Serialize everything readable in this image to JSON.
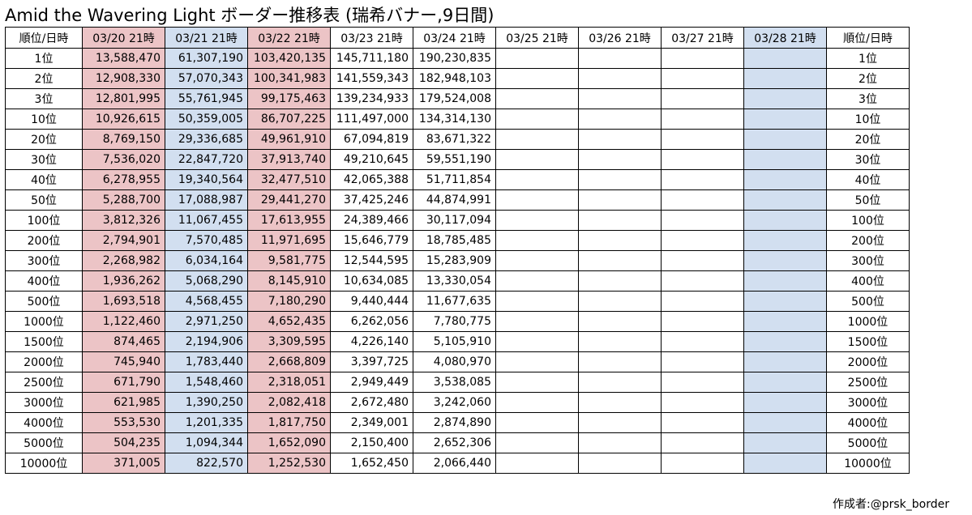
{
  "title": "Amid the Wavering Light ボーダー推移表 (瑞希バナー,9日間)",
  "credit": "作成者:@prsk_border",
  "colors": {
    "pink": "#ecc4c6",
    "blue": "#d2dff0",
    "grid": "#000000"
  },
  "table": {
    "corner_left": "順位/日時",
    "corner_right": "順位/日時",
    "columns": [
      {
        "label": "03/20 21時",
        "tint": "pink"
      },
      {
        "label": "03/21 21時",
        "tint": "blue"
      },
      {
        "label": "03/22 21時",
        "tint": "pink"
      },
      {
        "label": "03/23 21時",
        "tint": ""
      },
      {
        "label": "03/24 21時",
        "tint": ""
      },
      {
        "label": "03/25 21時",
        "tint": ""
      },
      {
        "label": "03/26 21時",
        "tint": ""
      },
      {
        "label": "03/27 21時",
        "tint": ""
      },
      {
        "label": "03/28 21時",
        "tint": "blue"
      }
    ],
    "rows": [
      {
        "rank": "1位",
        "values": [
          "13,588,470",
          "61,307,190",
          "103,420,135",
          "145,711,180",
          "190,230,835",
          "",
          "",
          "",
          ""
        ]
      },
      {
        "rank": "2位",
        "values": [
          "12,908,330",
          "57,070,343",
          "100,341,983",
          "141,559,343",
          "182,948,103",
          "",
          "",
          "",
          ""
        ]
      },
      {
        "rank": "3位",
        "values": [
          "12,801,995",
          "55,761,945",
          "99,175,463",
          "139,234,933",
          "179,524,008",
          "",
          "",
          "",
          ""
        ]
      },
      {
        "rank": "10位",
        "values": [
          "10,926,615",
          "50,359,005",
          "86,707,225",
          "111,497,000",
          "134,314,130",
          "",
          "",
          "",
          ""
        ]
      },
      {
        "rank": "20位",
        "values": [
          "8,769,150",
          "29,336,685",
          "49,961,910",
          "67,094,819",
          "83,671,322",
          "",
          "",
          "",
          ""
        ]
      },
      {
        "rank": "30位",
        "values": [
          "7,536,020",
          "22,847,720",
          "37,913,740",
          "49,210,645",
          "59,551,190",
          "",
          "",
          "",
          ""
        ]
      },
      {
        "rank": "40位",
        "values": [
          "6,278,955",
          "19,340,564",
          "32,477,510",
          "42,065,388",
          "51,711,854",
          "",
          "",
          "",
          ""
        ]
      },
      {
        "rank": "50位",
        "values": [
          "5,288,700",
          "17,088,987",
          "29,441,270",
          "37,425,246",
          "44,874,991",
          "",
          "",
          "",
          ""
        ]
      },
      {
        "rank": "100位",
        "values": [
          "3,812,326",
          "11,067,455",
          "17,613,955",
          "24,389,466",
          "30,117,094",
          "",
          "",
          "",
          ""
        ]
      },
      {
        "rank": "200位",
        "values": [
          "2,794,901",
          "7,570,485",
          "11,971,695",
          "15,646,779",
          "18,785,485",
          "",
          "",
          "",
          ""
        ]
      },
      {
        "rank": "300位",
        "values": [
          "2,268,982",
          "6,034,164",
          "9,581,775",
          "12,544,595",
          "15,283,909",
          "",
          "",
          "",
          ""
        ]
      },
      {
        "rank": "400位",
        "values": [
          "1,936,262",
          "5,068,290",
          "8,145,910",
          "10,634,085",
          "13,330,054",
          "",
          "",
          "",
          ""
        ]
      },
      {
        "rank": "500位",
        "values": [
          "1,693,518",
          "4,568,455",
          "7,180,290",
          "9,440,444",
          "11,677,635",
          "",
          "",
          "",
          ""
        ]
      },
      {
        "rank": "1000位",
        "values": [
          "1,122,460",
          "2,971,250",
          "4,652,435",
          "6,262,056",
          "7,780,775",
          "",
          "",
          "",
          ""
        ]
      },
      {
        "rank": "1500位",
        "values": [
          "874,465",
          "2,194,906",
          "3,309,595",
          "4,226,140",
          "5,105,910",
          "",
          "",
          "",
          ""
        ]
      },
      {
        "rank": "2000位",
        "values": [
          "745,940",
          "1,783,440",
          "2,668,809",
          "3,397,725",
          "4,080,970",
          "",
          "",
          "",
          ""
        ]
      },
      {
        "rank": "2500位",
        "values": [
          "671,790",
          "1,548,460",
          "2,318,051",
          "2,949,449",
          "3,538,085",
          "",
          "",
          "",
          ""
        ]
      },
      {
        "rank": "3000位",
        "values": [
          "621,985",
          "1,390,250",
          "2,082,418",
          "2,672,480",
          "3,242,060",
          "",
          "",
          "",
          ""
        ]
      },
      {
        "rank": "4000位",
        "values": [
          "553,530",
          "1,201,335",
          "1,817,750",
          "2,349,001",
          "2,874,890",
          "",
          "",
          "",
          ""
        ]
      },
      {
        "rank": "5000位",
        "values": [
          "504,235",
          "1,094,344",
          "1,652,090",
          "2,150,400",
          "2,652,306",
          "",
          "",
          "",
          ""
        ]
      },
      {
        "rank": "10000位",
        "values": [
          "371,005",
          "822,570",
          "1,252,530",
          "1,652,450",
          "2,066,440",
          "",
          "",
          "",
          ""
        ]
      }
    ]
  }
}
